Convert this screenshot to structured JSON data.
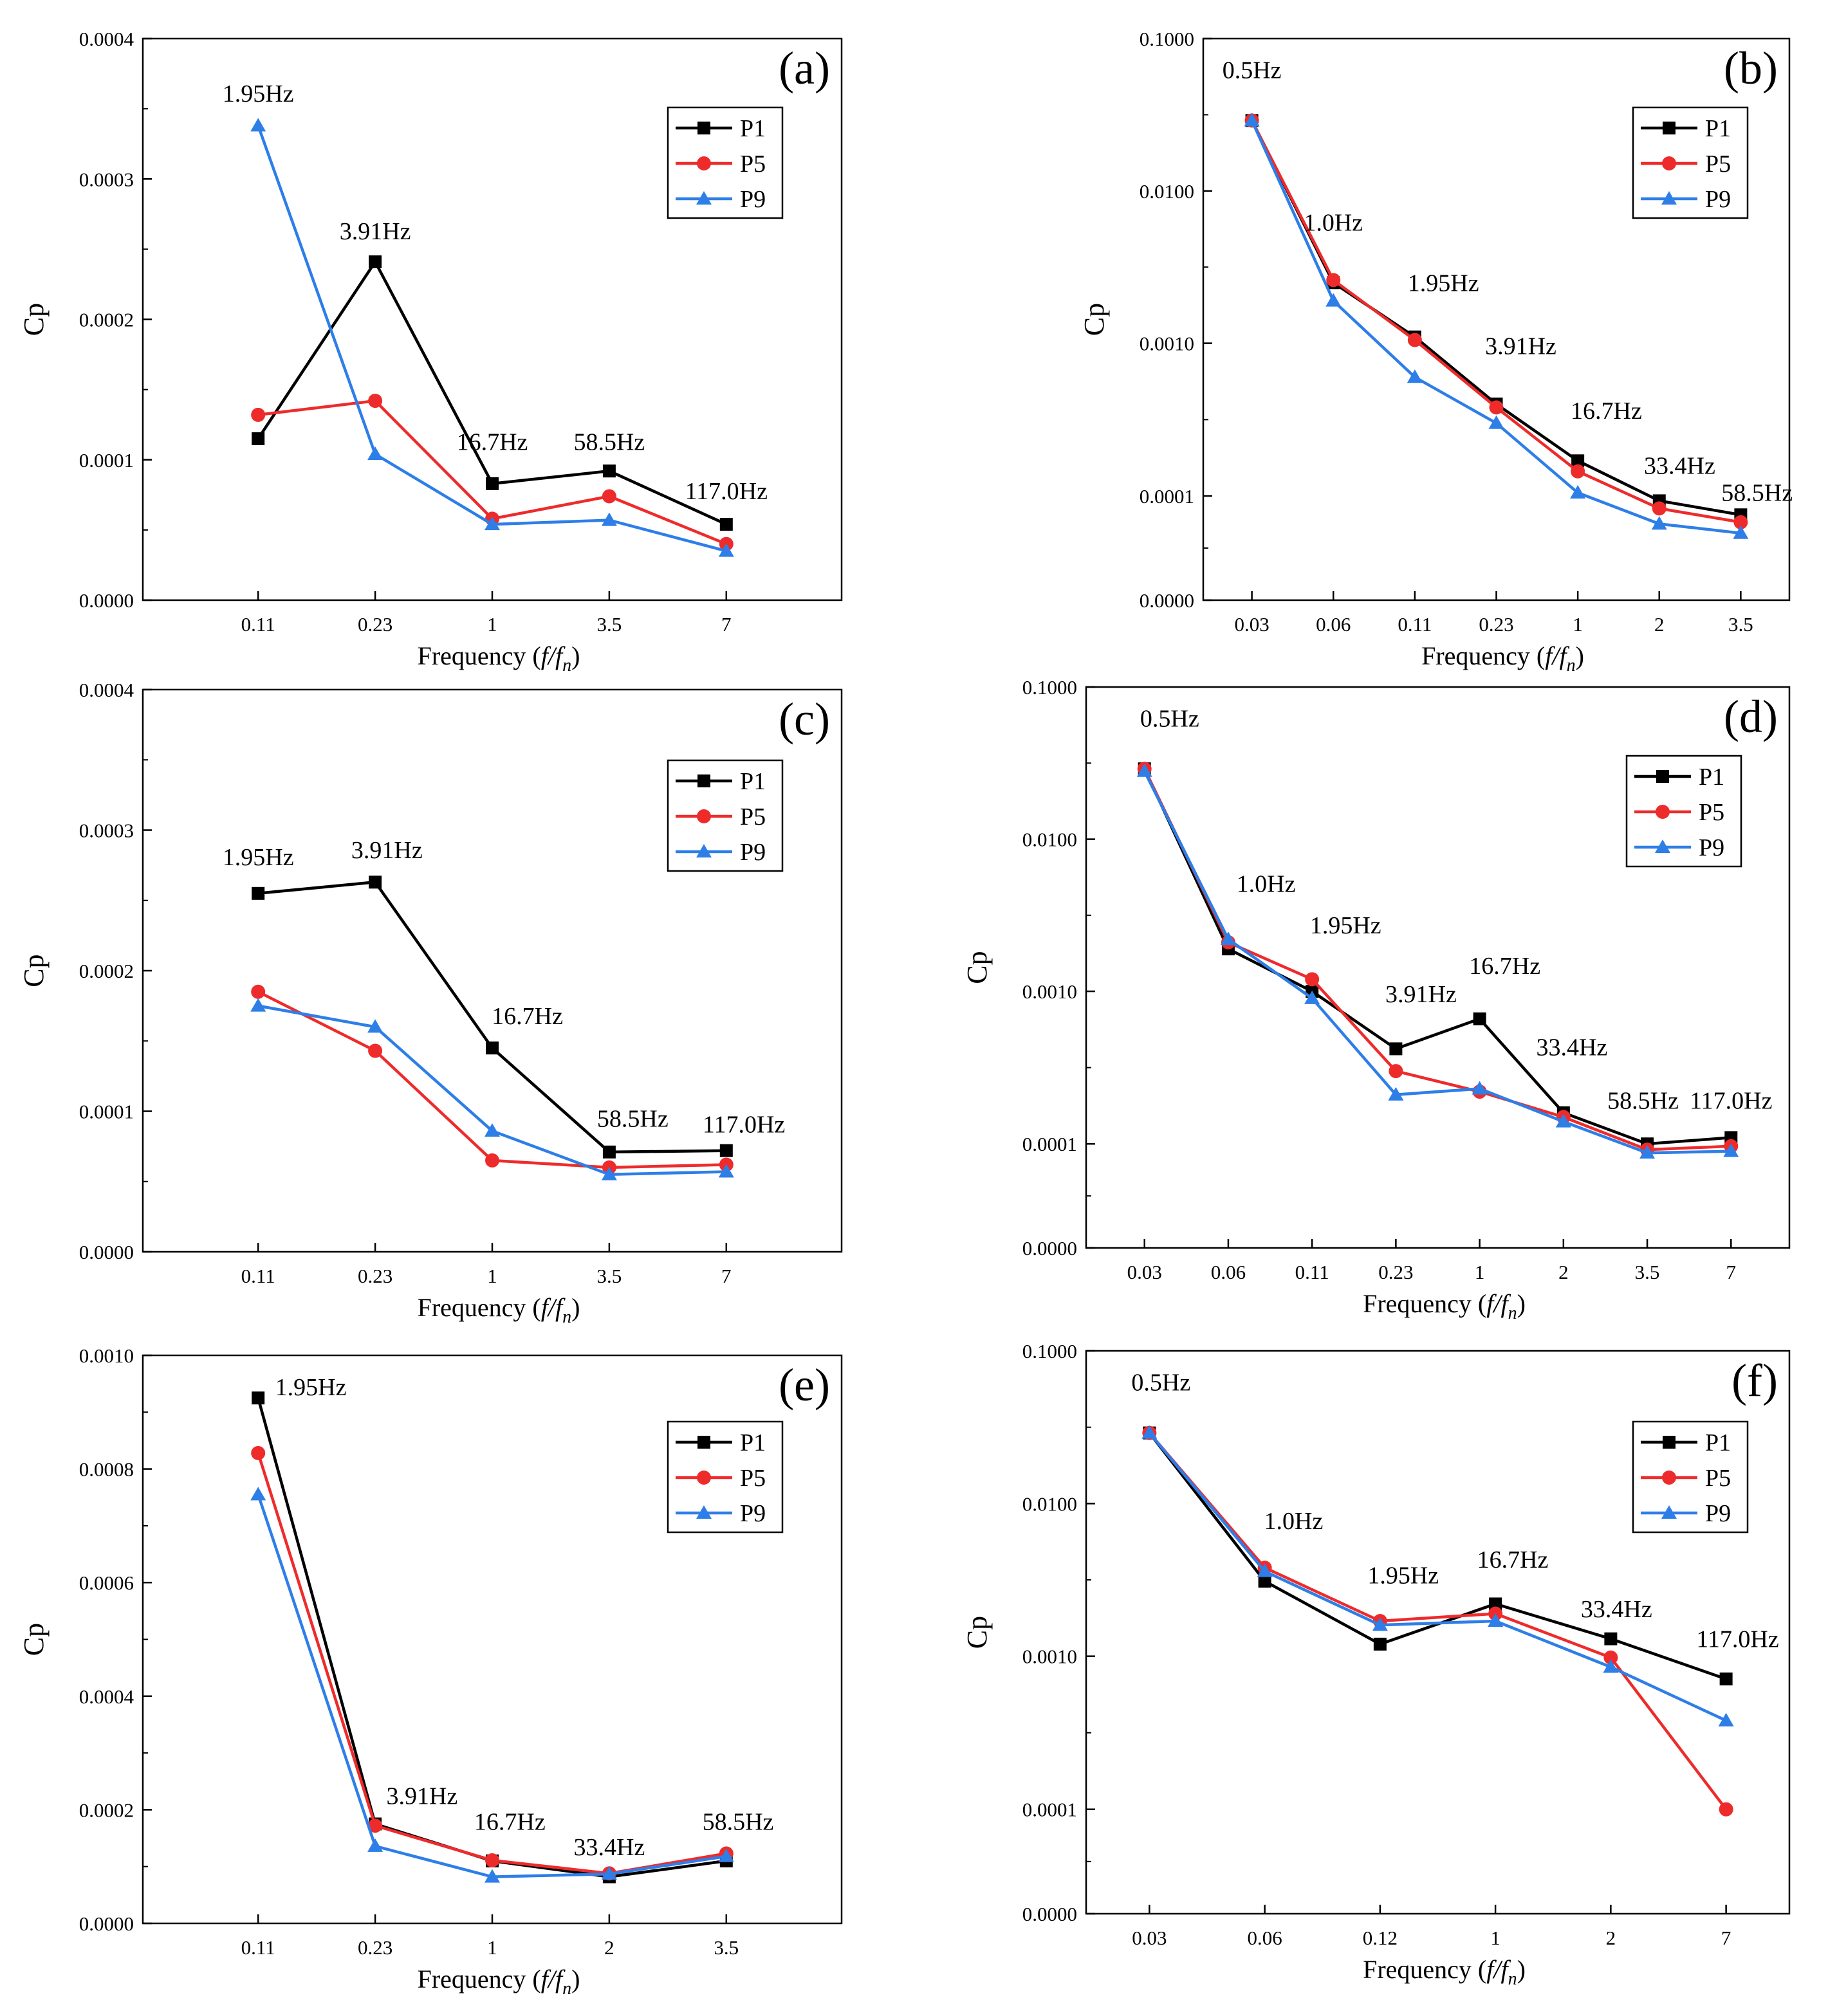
{
  "colors": {
    "P1": "#000000",
    "P5": "#ee2b2b",
    "P9": "#2e7ee8"
  },
  "legend_labels": [
    "P1",
    "P5",
    "P9"
  ],
  "chart_data": [
    {
      "panel": "(a)",
      "type": "line",
      "scale": "linear",
      "xlabel": "Frequency",
      "xlabel_ratio": "f/f",
      "xlabel_sub": "n",
      "ylabel": "Cp",
      "categories": [
        "0.11",
        "0.23",
        "1",
        "3.5",
        "7"
      ],
      "yticks": [
        "0.0000",
        "0.0001",
        "0.0002",
        "0.0003",
        "0.0004"
      ],
      "ylim": [
        0,
        0.0004
      ],
      "series": [
        {
          "name": "P1",
          "values": [
            0.000115,
            0.000241,
            8.3e-05,
            9.2e-05,
            5.4e-05
          ]
        },
        {
          "name": "P5",
          "values": [
            0.000132,
            0.000142,
            5.8e-05,
            7.4e-05,
            4e-05
          ]
        },
        {
          "name": "P9",
          "values": [
            0.000338,
            0.000104,
            5.4e-05,
            5.7e-05,
            3.5e-05
          ]
        }
      ],
      "annotations": [
        {
          "text": "1.95Hz",
          "cat": 0,
          "y": 0.000355
        },
        {
          "text": "3.91Hz",
          "cat": 1,
          "y": 0.000257
        },
        {
          "text": "16.7Hz",
          "cat": 2,
          "y": 0.000107
        },
        {
          "text": "58.5Hz",
          "cat": 3,
          "y": 0.000107
        },
        {
          "text": "117.0Hz",
          "cat": 4,
          "y": 7.2e-05
        }
      ]
    },
    {
      "panel": "(b)",
      "type": "line",
      "scale": "log",
      "xlabel": "Frequency",
      "xlabel_ratio": "f/f",
      "xlabel_sub": "n",
      "ylabel": "Cp",
      "categories": [
        "0.03",
        "0.06",
        "0.11",
        "0.23",
        "1",
        "2",
        "3.5"
      ],
      "yticks": [
        "0.0000",
        "0.0001",
        "0.0010",
        "0.0100",
        "0.1000"
      ],
      "series": [
        {
          "name": "P1",
          "values": [
            0.029,
            0.0025,
            0.0011,
            0.0004,
            0.00017,
            9e-05,
            6.6e-05
          ]
        },
        {
          "name": "P5",
          "values": [
            0.029,
            0.0026,
            0.00105,
            0.00038,
            0.000145,
            7.6e-05,
            5.6e-05
          ]
        },
        {
          "name": "P9",
          "values": [
            0.029,
            0.0019,
            0.0006,
            0.0003,
            0.000105,
            5.4e-05,
            4.4e-05
          ]
        }
      ],
      "annotations": [
        {
          "text": "0.5Hz",
          "cat": 0,
          "y": 0.055
        },
        {
          "text": "1.0Hz",
          "cat": 1,
          "y": 0.0055
        },
        {
          "text": "1.95Hz",
          "cat": 2.35,
          "y": 0.0022
        },
        {
          "text": "3.91Hz",
          "cat": 3.3,
          "y": 0.00085
        },
        {
          "text": "16.7Hz",
          "cat": 4.35,
          "y": 0.00032
        },
        {
          "text": "33.4Hz",
          "cat": 5.25,
          "y": 0.00014
        },
        {
          "text": "58.5Hz",
          "cat": 6.2,
          "y": 9e-05
        }
      ]
    },
    {
      "panel": "(c)",
      "type": "line",
      "scale": "linear",
      "xlabel": "Frequency",
      "xlabel_ratio": "f/f",
      "xlabel_sub": "n",
      "ylabel": "Cp",
      "categories": [
        "0.11",
        "0.23",
        "1",
        "3.5",
        "7"
      ],
      "yticks": [
        "0.0000",
        "0.0001",
        "0.0002",
        "0.0003",
        "0.0004"
      ],
      "ylim": [
        0,
        0.0004
      ],
      "series": [
        {
          "name": "P1",
          "values": [
            0.000255,
            0.000263,
            0.000145,
            7.1e-05,
            7.2e-05
          ]
        },
        {
          "name": "P5",
          "values": [
            0.000185,
            0.000143,
            6.5e-05,
            6e-05,
            6.2e-05
          ]
        },
        {
          "name": "P9",
          "values": [
            0.000175,
            0.00016,
            8.6e-05,
            5.5e-05,
            5.7e-05
          ]
        }
      ],
      "annotations": [
        {
          "text": "1.95Hz",
          "cat": 0,
          "y": 0.000275
        },
        {
          "text": "3.91Hz",
          "cat": 1.1,
          "y": 0.00028
        },
        {
          "text": "16.7Hz",
          "cat": 2.3,
          "y": 0.000162
        },
        {
          "text": "58.5Hz",
          "cat": 3.2,
          "y": 8.9e-05
        },
        {
          "text": "117.0Hz",
          "cat": 4.15,
          "y": 8.5e-05
        }
      ]
    },
    {
      "panel": "(d)",
      "type": "line",
      "scale": "log",
      "xlabel": "Frequency",
      "xlabel_ratio": "f/f",
      "xlabel_sub": "n",
      "ylabel": "Cp",
      "categories": [
        "0.03",
        "0.06",
        "0.11",
        "0.23",
        "1",
        "2",
        "3.5",
        "7"
      ],
      "yticks": [
        "0.0000",
        "0.0001",
        "0.0010",
        "0.0100",
        "0.1000"
      ],
      "series": [
        {
          "name": "P1",
          "values": [
            0.029,
            0.0019,
            0.001,
            0.00042,
            0.00066,
            0.00016,
            0.0001,
            0.00011
          ]
        },
        {
          "name": "P5",
          "values": [
            0.029,
            0.0021,
            0.0012,
            0.0003,
            0.00022,
            0.00015,
            8.8e-05,
            9.5e-05
          ]
        },
        {
          "name": "P9",
          "values": [
            0.028,
            0.0022,
            0.0009,
            0.00021,
            0.00023,
            0.00014,
            8.2e-05,
            8.5e-05
          ]
        }
      ],
      "annotations": [
        {
          "text": "0.5Hz",
          "cat": 0.3,
          "y": 0.055
        },
        {
          "text": "1.0Hz",
          "cat": 1.45,
          "y": 0.0045
        },
        {
          "text": "1.95Hz",
          "cat": 2.4,
          "y": 0.0024
        },
        {
          "text": "3.91Hz",
          "cat": 3.3,
          "y": 0.00085
        },
        {
          "text": "16.7Hz",
          "cat": 4.3,
          "y": 0.0013
        },
        {
          "text": "33.4Hz",
          "cat": 5.1,
          "y": 0.00038
        },
        {
          "text": "58.5Hz",
          "cat": 5.95,
          "y": 0.00017
        },
        {
          "text": "117.0Hz",
          "cat": 7.0,
          "y": 0.00017
        }
      ]
    },
    {
      "panel": "(e)",
      "type": "line",
      "scale": "linear",
      "xlabel": "Frequency",
      "xlabel_ratio": "f/f",
      "xlabel_sub": "n",
      "ylabel": "Cp",
      "categories": [
        "0.11",
        "0.23",
        "1",
        "2",
        "3.5"
      ],
      "yticks": [
        "0.0000",
        "0.0002",
        "0.0004",
        "0.0006",
        "0.0008",
        "0.0010"
      ],
      "ylim": [
        0,
        0.001
      ],
      "series": [
        {
          "name": "P1",
          "values": [
            0.000925,
            0.000175,
            0.00011,
            8.2e-05,
            0.00011
          ]
        },
        {
          "name": "P5",
          "values": [
            0.000828,
            0.000172,
            0.000111,
            8.8e-05,
            0.000123
          ]
        },
        {
          "name": "P9",
          "values": [
            0.000755,
            0.000136,
            8.2e-05,
            8.7e-05,
            0.000118
          ]
        }
      ],
      "annotations": [
        {
          "text": "1.95Hz",
          "cat": 0.45,
          "y": 0.00093
        },
        {
          "text": "3.91Hz",
          "cat": 1.4,
          "y": 0.00021
        },
        {
          "text": "16.7Hz",
          "cat": 2.15,
          "y": 0.000165
        },
        {
          "text": "33.4Hz",
          "cat": 3.0,
          "y": 0.00012
        },
        {
          "text": "58.5Hz",
          "cat": 4.1,
          "y": 0.000165
        }
      ]
    },
    {
      "panel": "(f)",
      "type": "line",
      "scale": "log",
      "xlabel": "Frequency",
      "xlabel_ratio": "f/f",
      "xlabel_sub": "n",
      "ylabel": "Cp",
      "categories": [
        "0.03",
        "0.06",
        "0.12",
        "1",
        "2",
        "7"
      ],
      "yticks": [
        "0.0000",
        "0.0001",
        "0.0010",
        "0.0100",
        "0.1000"
      ],
      "series": [
        {
          "name": "P1",
          "values": [
            0.029,
            0.0031,
            0.0012,
            0.0022,
            0.0013,
            0.00071
          ]
        },
        {
          "name": "P5",
          "values": [
            0.029,
            0.0038,
            0.0017,
            0.0019,
            0.00098,
            0.0001
          ]
        },
        {
          "name": "P9",
          "values": [
            0.029,
            0.0036,
            0.0016,
            0.0017,
            0.00085,
            0.00038
          ]
        }
      ],
      "annotations": [
        {
          "text": "0.5Hz",
          "cat": 0.1,
          "y": 0.055
        },
        {
          "text": "1.0Hz",
          "cat": 1.25,
          "y": 0.0068
        },
        {
          "text": "1.95Hz",
          "cat": 2.2,
          "y": 0.003
        },
        {
          "text": "16.7Hz",
          "cat": 3.15,
          "y": 0.0038
        },
        {
          "text": "33.4Hz",
          "cat": 4.05,
          "y": 0.0018
        },
        {
          "text": "117.0Hz",
          "cat": 5.1,
          "y": 0.00115
        }
      ]
    }
  ]
}
